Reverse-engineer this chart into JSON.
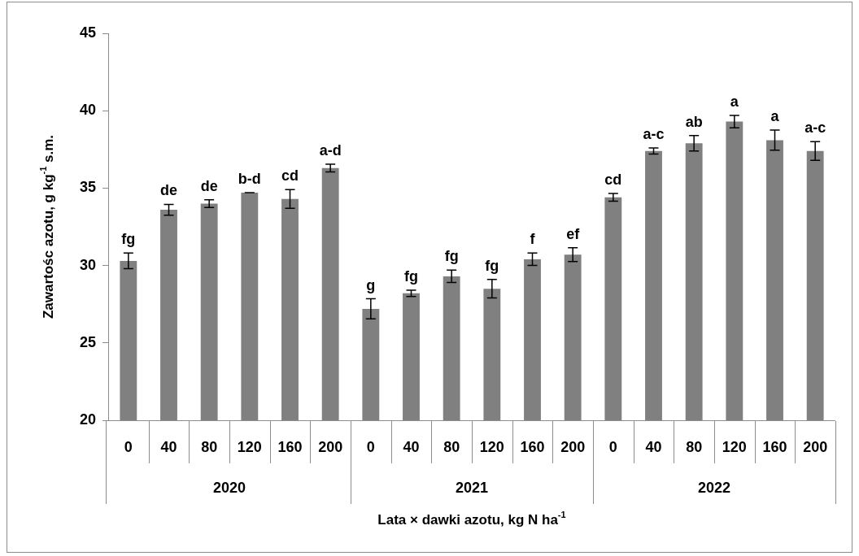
{
  "chart_data": {
    "type": "bar",
    "xlabel": "Lata × dawki azotu, kg N ha$^{-1}$",
    "ylabel": "Zawartośc azotu, g kg$^{-1}$ s.m.",
    "categories": [
      "0",
      "40",
      "80",
      "120",
      "160",
      "200",
      "0",
      "40",
      "80",
      "120",
      "160",
      "200",
      "0",
      "40",
      "80",
      "120",
      "160",
      "200"
    ],
    "values": [
      30.3,
      33.6,
      34.0,
      34.7,
      34.3,
      36.3,
      27.2,
      28.2,
      29.3,
      28.5,
      30.4,
      30.7,
      34.4,
      37.4,
      37.9,
      39.3,
      38.1,
      37.4
    ],
    "errors": [
      0.5,
      0.35,
      0.25,
      0,
      0.6,
      0.25,
      0.65,
      0.2,
      0.4,
      0.6,
      0.4,
      0.45,
      0.25,
      0.2,
      0.5,
      0.4,
      0.65,
      0.6
    ],
    "value_labels": [
      "fg",
      "de",
      "de",
      "b-d",
      "cd",
      "a-d",
      "g",
      "fg",
      "fg",
      "fg",
      "f",
      "ef",
      "cd",
      "a-c",
      "ab",
      "a",
      "a",
      "a-c"
    ],
    "annotations": [
      "2020",
      "2021",
      "2022"
    ],
    "color": "#808080",
    "ylim": [
      20,
      45
    ],
    "yticks": [
      20,
      25,
      30,
      35,
      40,
      45
    ]
  }
}
